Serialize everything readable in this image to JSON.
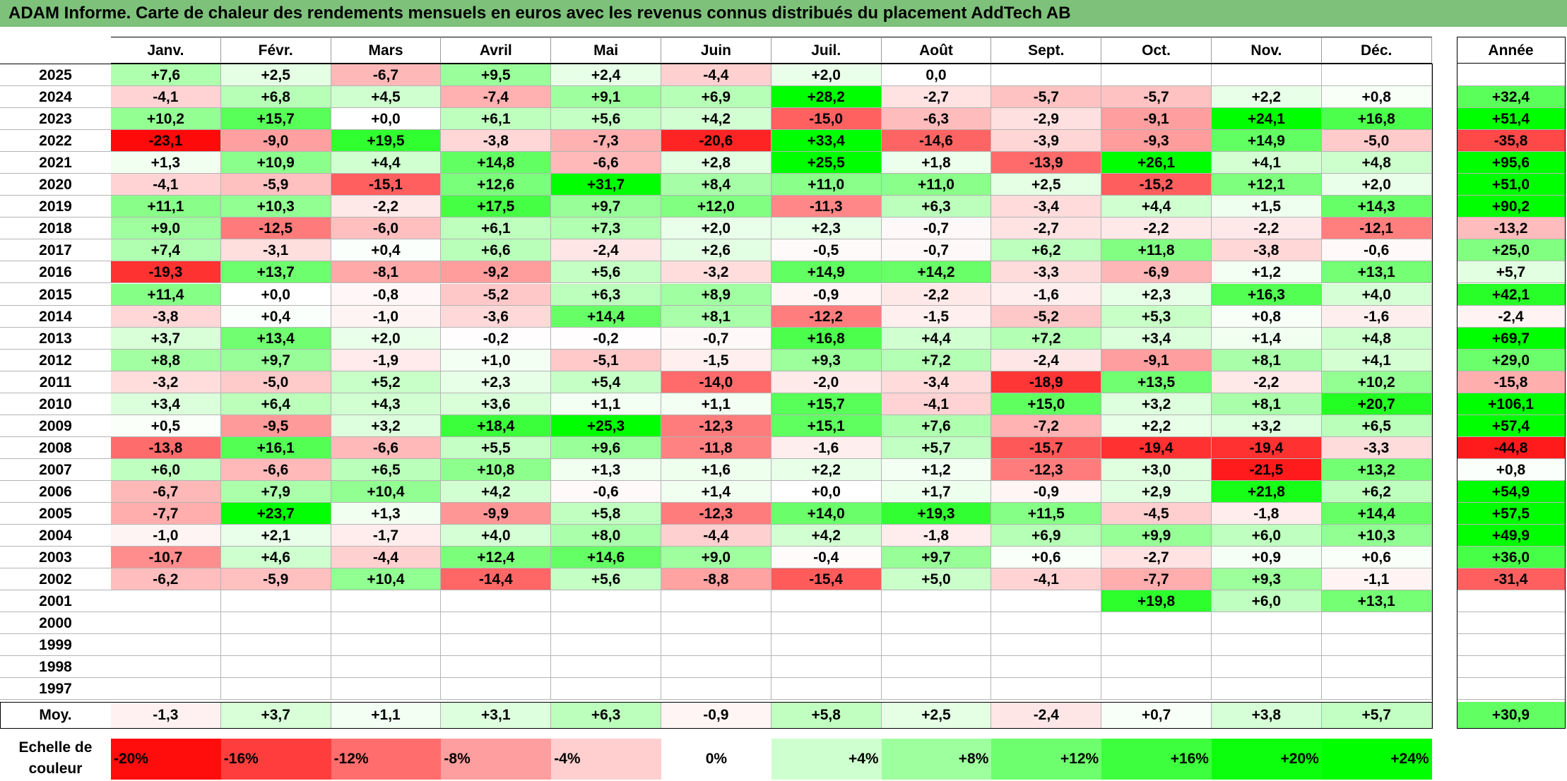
{
  "title": "ADAM Informe. Carte de chaleur des rendements mensuels en euros avec les revenus connus distribués du placement AddTech AB",
  "chart_data": {
    "type": "heatmap",
    "months": [
      "Janv.",
      "Févr.",
      "Mars",
      "Avril",
      "Mai",
      "Juin",
      "Juil.",
      "Août",
      "Sept.",
      "Oct.",
      "Nov.",
      "Déc."
    ],
    "year_header": "Année",
    "rows": [
      {
        "year": "2025",
        "values": [
          "+7,6",
          "+2,5",
          "-6,7",
          "+9,5",
          "+2,4",
          "-4,4",
          "+2,0",
          "0,0",
          "",
          "",
          "",
          ""
        ],
        "annual": ""
      },
      {
        "year": "2024",
        "values": [
          "-4,1",
          "+6,8",
          "+4,5",
          "-7,4",
          "+9,1",
          "+6,9",
          "+28,2",
          "-2,7",
          "-5,7",
          "-5,7",
          "+2,2",
          "+0,8"
        ],
        "annual": "+32,4"
      },
      {
        "year": "2023",
        "values": [
          "+10,2",
          "+15,7",
          "+0,0",
          "+6,1",
          "+5,6",
          "+4,2",
          "-15,0",
          "-6,3",
          "-2,9",
          "-9,1",
          "+24,1",
          "+16,8"
        ],
        "annual": "+51,4"
      },
      {
        "year": "2022",
        "values": [
          "-23,1",
          "-9,0",
          "+19,5",
          "-3,8",
          "-7,3",
          "-20,6",
          "+33,4",
          "-14,6",
          "-3,9",
          "-9,3",
          "+14,9",
          "-5,0"
        ],
        "annual": "-35,8"
      },
      {
        "year": "2021",
        "values": [
          "+1,3",
          "+10,9",
          "+4,4",
          "+14,8",
          "-6,6",
          "+2,8",
          "+25,5",
          "+1,8",
          "-13,9",
          "+26,1",
          "+4,1",
          "+4,8"
        ],
        "annual": "+95,6"
      },
      {
        "year": "2020",
        "values": [
          "-4,1",
          "-5,9",
          "-15,1",
          "+12,6",
          "+31,7",
          "+8,4",
          "+11,0",
          "+11,0",
          "+2,5",
          "-15,2",
          "+12,1",
          "+2,0"
        ],
        "annual": "+51,0"
      },
      {
        "year": "2019",
        "values": [
          "+11,1",
          "+10,3",
          "-2,2",
          "+17,5",
          "+9,7",
          "+12,0",
          "-11,3",
          "+6,3",
          "-3,4",
          "+4,4",
          "+1,5",
          "+14,3"
        ],
        "annual": "+90,2"
      },
      {
        "year": "2018",
        "values": [
          "+9,0",
          "-12,5",
          "-6,0",
          "+6,1",
          "+7,3",
          "+2,0",
          "+2,3",
          "-0,7",
          "-2,7",
          "-2,2",
          "-2,2",
          "-12,1"
        ],
        "annual": "-13,2"
      },
      {
        "year": "2017",
        "values": [
          "+7,4",
          "-3,1",
          "+0,4",
          "+6,6",
          "-2,4",
          "+2,6",
          "-0,5",
          "-0,7",
          "+6,2",
          "+11,8",
          "-3,8",
          "-0,6"
        ],
        "annual": "+25,0"
      },
      {
        "year": "2016",
        "values": [
          "-19,3",
          "+13,7",
          "-8,1",
          "-9,2",
          "+5,6",
          "-3,2",
          "+14,9",
          "+14,2",
          "-3,3",
          "-6,9",
          "+1,2",
          "+13,1"
        ],
        "annual": "+5,7"
      },
      {
        "year": "2015",
        "values": [
          "+11,4",
          "+0,0",
          "-0,8",
          "-5,2",
          "+6,3",
          "+8,9",
          "-0,9",
          "-2,2",
          "-1,6",
          "+2,3",
          "+16,3",
          "+4,0"
        ],
        "annual": "+42,1"
      },
      {
        "year": "2014",
        "values": [
          "-3,8",
          "+0,4",
          "-1,0",
          "-3,6",
          "+14,4",
          "+8,1",
          "-12,2",
          "-1,5",
          "-5,2",
          "+5,3",
          "+0,8",
          "-1,6"
        ],
        "annual": "-2,4"
      },
      {
        "year": "2013",
        "values": [
          "+3,7",
          "+13,4",
          "+2,0",
          "-0,2",
          "-0,2",
          "-0,7",
          "+16,8",
          "+4,4",
          "+7,2",
          "+3,4",
          "+1,4",
          "+4,8"
        ],
        "annual": "+69,7"
      },
      {
        "year": "2012",
        "values": [
          "+8,8",
          "+9,7",
          "-1,9",
          "+1,0",
          "-5,1",
          "-1,5",
          "+9,3",
          "+7,2",
          "-2,4",
          "-9,1",
          "+8,1",
          "+4,1"
        ],
        "annual": "+29,0"
      },
      {
        "year": "2011",
        "values": [
          "-3,2",
          "-5,0",
          "+5,2",
          "+2,3",
          "+5,4",
          "-14,0",
          "-2,0",
          "-3,4",
          "-18,9",
          "+13,5",
          "-2,2",
          "+10,2"
        ],
        "annual": "-15,8"
      },
      {
        "year": "2010",
        "values": [
          "+3,4",
          "+6,4",
          "+4,3",
          "+3,6",
          "+1,1",
          "+1,1",
          "+15,7",
          "-4,1",
          "+15,0",
          "+3,2",
          "+8,1",
          "+20,7"
        ],
        "annual": "+106,1"
      },
      {
        "year": "2009",
        "values": [
          "+0,5",
          "-9,5",
          "+3,2",
          "+18,4",
          "+25,3",
          "-12,3",
          "+15,1",
          "+7,6",
          "-7,2",
          "+2,2",
          "+3,2",
          "+6,5"
        ],
        "annual": "+57,4"
      },
      {
        "year": "2008",
        "values": [
          "-13,8",
          "+16,1",
          "-6,6",
          "+5,5",
          "+9,6",
          "-11,8",
          "-1,6",
          "+5,7",
          "-15,7",
          "-19,4",
          "-19,4",
          "-3,3"
        ],
        "annual": "-44,8"
      },
      {
        "year": "2007",
        "values": [
          "+6,0",
          "-6,6",
          "+6,5",
          "+10,8",
          "+1,3",
          "+1,6",
          "+2,2",
          "+1,2",
          "-12,3",
          "+3,0",
          "-21,5",
          "+13,2"
        ],
        "annual": "+0,8"
      },
      {
        "year": "2006",
        "values": [
          "-6,7",
          "+7,9",
          "+10,4",
          "+4,2",
          "-0,6",
          "+1,4",
          "+0,0",
          "+1,7",
          "-0,9",
          "+2,9",
          "+21,8",
          "+6,2"
        ],
        "annual": "+54,9"
      },
      {
        "year": "2005",
        "values": [
          "-7,7",
          "+23,7",
          "+1,3",
          "-9,9",
          "+5,8",
          "-12,3",
          "+14,0",
          "+19,3",
          "+11,5",
          "-4,5",
          "-1,8",
          "+14,4"
        ],
        "annual": "+57,5"
      },
      {
        "year": "2004",
        "values": [
          "-1,0",
          "+2,1",
          "-1,7",
          "+4,0",
          "+8,0",
          "-4,4",
          "+4,2",
          "-1,8",
          "+6,9",
          "+9,9",
          "+6,0",
          "+10,3"
        ],
        "annual": "+49,9"
      },
      {
        "year": "2003",
        "values": [
          "-10,7",
          "+4,6",
          "-4,4",
          "+12,4",
          "+14,6",
          "+9,0",
          "-0,4",
          "+9,7",
          "+0,6",
          "-2,7",
          "+0,9",
          "+0,6"
        ],
        "annual": "+36,0"
      },
      {
        "year": "2002",
        "values": [
          "-6,2",
          "-5,9",
          "+10,4",
          "-14,4",
          "+5,6",
          "-8,8",
          "-15,4",
          "+5,0",
          "-4,1",
          "-7,7",
          "+9,3",
          "-1,1"
        ],
        "annual": "-31,4"
      },
      {
        "year": "2001",
        "values": [
          "",
          "",
          "",
          "",
          "",
          "",
          "",
          "",
          "",
          "+19,8",
          "+6,0",
          "+13,1"
        ],
        "annual": ""
      },
      {
        "year": "2000",
        "values": [
          "",
          "",
          "",
          "",
          "",
          "",
          "",
          "",
          "",
          "",
          "",
          ""
        ],
        "annual": ""
      },
      {
        "year": "1999",
        "values": [
          "",
          "",
          "",
          "",
          "",
          "",
          "",
          "",
          "",
          "",
          "",
          ""
        ],
        "annual": ""
      },
      {
        "year": "1998",
        "values": [
          "",
          "",
          "",
          "",
          "",
          "",
          "",
          "",
          "",
          "",
          "",
          ""
        ],
        "annual": ""
      },
      {
        "year": "1997",
        "values": [
          "",
          "",
          "",
          "",
          "",
          "",
          "",
          "",
          "",
          "",
          "",
          ""
        ],
        "annual": ""
      }
    ],
    "average": {
      "label": "Moy.",
      "values": [
        "-1,3",
        "+3,7",
        "+1,1",
        "+3,1",
        "+6,3",
        "-0,9",
        "+5,8",
        "+2,5",
        "-2,4",
        "+0,7",
        "+3,8",
        "+5,7"
      ],
      "annual": "+30,9"
    },
    "color_scale": {
      "label": "Echelle de couleur",
      "stops": [
        "-20%",
        "-16%",
        "-12%",
        "-8%",
        "-4%",
        "0%",
        "+4%",
        "+8%",
        "+12%",
        "+16%",
        "+20%",
        "+24%"
      ]
    },
    "colors": {
      "negative_max": "#ff0000",
      "neutral": "#ffffff",
      "positive_max": "#00ff00",
      "title_bar": "#7dc17a"
    }
  }
}
